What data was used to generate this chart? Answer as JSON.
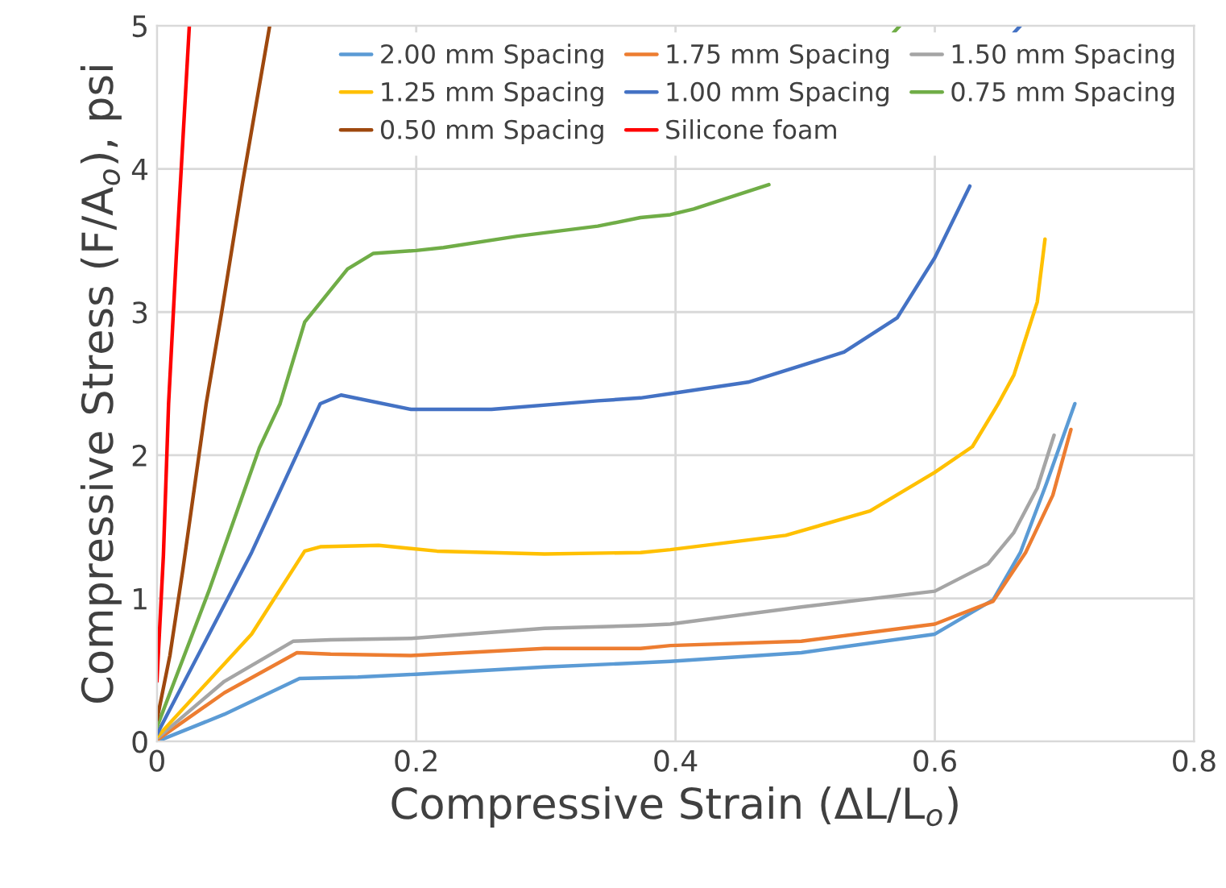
{
  "chart_data": {
    "type": "line",
    "xlabel": "Compressive Strain (ΔL/L$_{o}$)",
    "ylabel": "Compressive Stress (F/A$_{o}$), psi",
    "xlim": [
      0,
      0.8
    ],
    "xticks": [
      0,
      0.2,
      0.4,
      0.6,
      0.8
    ],
    "ylim": [
      0,
      5
    ],
    "yticks": [
      0,
      1,
      2,
      3,
      4,
      5
    ],
    "grid": true,
    "legend": "top right",
    "marker": "none",
    "line_style": "solid",
    "series": [
      {
        "name": "2.00 mm Spacing",
        "color": "#5b9bd5",
        "x": [
          0,
          0.052,
          0.11,
          0.155,
          0.2,
          0.299,
          0.373,
          0.396,
          0.497,
          0.6,
          0.645,
          0.666,
          0.686,
          0.708
        ],
        "values": [
          0.0,
          0.19,
          0.44,
          0.45,
          0.47,
          0.52,
          0.55,
          0.56,
          0.62,
          0.75,
          0.99,
          1.32,
          1.8,
          2.36
        ]
      },
      {
        "name": "1.75 mm Spacing",
        "color": "#ed7d31",
        "x": [
          0,
          0.052,
          0.108,
          0.134,
          0.196,
          0.299,
          0.373,
          0.396,
          0.497,
          0.6,
          0.645,
          0.67,
          0.691,
          0.705
        ],
        "values": [
          0.01,
          0.34,
          0.62,
          0.61,
          0.6,
          0.65,
          0.65,
          0.67,
          0.7,
          0.82,
          0.98,
          1.32,
          1.72,
          2.18
        ]
      },
      {
        "name": "1.50 mm Spacing",
        "color": "#a5a5a5",
        "x": [
          0,
          0.052,
          0.105,
          0.134,
          0.196,
          0.299,
          0.373,
          0.396,
          0.497,
          0.6,
          0.641,
          0.661,
          0.679,
          0.692
        ],
        "values": [
          0.02,
          0.42,
          0.7,
          0.71,
          0.72,
          0.79,
          0.81,
          0.82,
          0.94,
          1.05,
          1.24,
          1.46,
          1.77,
          2.14
        ]
      },
      {
        "name": "1.25 mm Spacing",
        "color": "#ffc000",
        "x": [
          0,
          0.073,
          0.114,
          0.126,
          0.171,
          0.216,
          0.299,
          0.373,
          0.396,
          0.485,
          0.55,
          0.6,
          0.629,
          0.649,
          0.661,
          0.679,
          0.685
        ],
        "values": [
          0.03,
          0.75,
          1.33,
          1.36,
          1.37,
          1.33,
          1.31,
          1.32,
          1.34,
          1.44,
          1.61,
          1.88,
          2.06,
          2.36,
          2.56,
          3.07,
          3.51
        ]
      },
      {
        "name": "1.00 mm Spacing",
        "color": "#4472c4",
        "x": [
          0,
          0.073,
          0.126,
          0.142,
          0.196,
          0.258,
          0.34,
          0.373,
          0.396,
          0.456,
          0.53,
          0.571,
          0.6,
          0.627,
          0.64,
          0.661,
          0.666
        ],
        "values": [
          0.05,
          1.32,
          2.36,
          2.42,
          2.32,
          2.32,
          2.38,
          2.4,
          2.43,
          2.51,
          2.72,
          2.96,
          3.38,
          3.88,
          null,
          4.95,
          5.0
        ]
      },
      {
        "name": "0.75 mm Spacing",
        "color": "#70ad47",
        "x": [
          0,
          0.04,
          0.079,
          0.095,
          0.114,
          0.147,
          0.167,
          0.2,
          0.221,
          0.278,
          0.34,
          0.373,
          0.396,
          0.414,
          0.472,
          0.5,
          0.568,
          0.573
        ],
        "values": [
          0.1,
          1.05,
          2.05,
          2.36,
          2.93,
          3.3,
          3.41,
          3.43,
          3.45,
          3.53,
          3.6,
          3.66,
          3.68,
          3.72,
          3.89,
          null,
          4.95,
          5.0
        ]
      },
      {
        "name": "0.50 mm Spacing",
        "color": "#9e480e",
        "x": [
          0,
          0.01,
          0.02,
          0.038,
          0.05,
          0.066,
          0.087
        ],
        "values": [
          0.15,
          0.6,
          1.2,
          2.36,
          3.0,
          3.9,
          5.0
        ]
      },
      {
        "name": "Silicone foam",
        "color": "#ff0000",
        "x": [
          0,
          0.005,
          0.009,
          0.015,
          0.02,
          0.025
        ],
        "values": [
          0.42,
          1.3,
          2.36,
          3.4,
          4.2,
          5.0
        ]
      }
    ]
  }
}
